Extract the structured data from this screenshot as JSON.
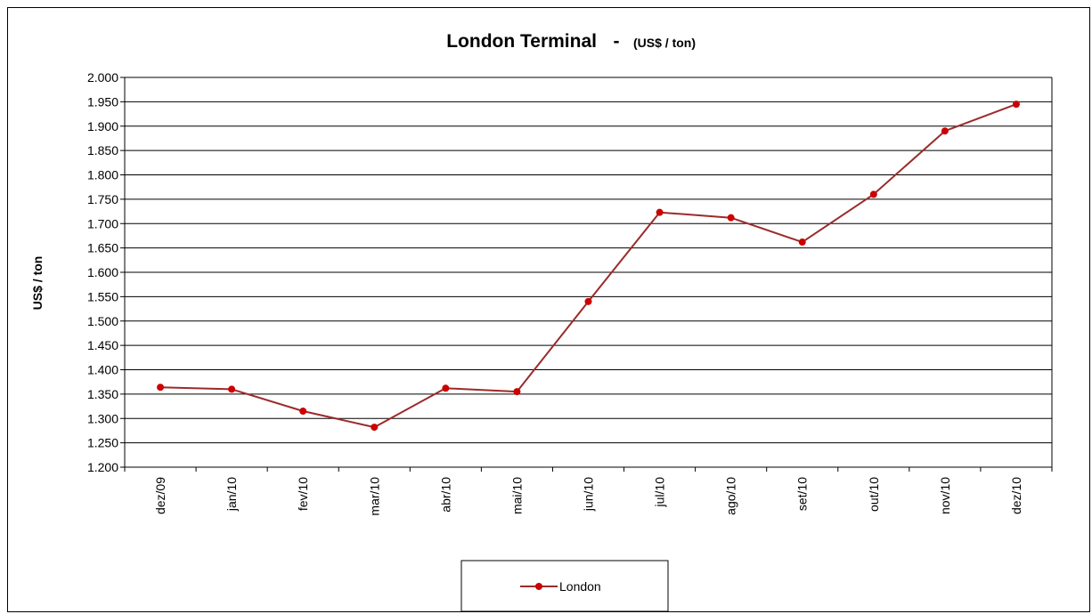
{
  "chart_data": {
    "type": "line",
    "title": "London Terminal",
    "title_separator": "-",
    "subtitle": "(US$ / ton)",
    "xlabel": "",
    "ylabel": "US$ / ton",
    "ylim": [
      1200,
      2000
    ],
    "ytick_step": 50,
    "ytick_labels": [
      "1.200",
      "1.250",
      "1.300",
      "1.350",
      "1.400",
      "1.450",
      "1.500",
      "1.550",
      "1.600",
      "1.650",
      "1.700",
      "1.750",
      "1.800",
      "1.850",
      "1.900",
      "1.950",
      "2.000"
    ],
    "categories": [
      "dez/09",
      "jan/10",
      "fev/10",
      "mar/10",
      "abr/10",
      "mai/10",
      "jun/10",
      "jul/10",
      "ago/10",
      "set/10",
      "out/10",
      "nov/10",
      "dez/10"
    ],
    "series": [
      {
        "name": "London",
        "color": "#9b2b2b",
        "marker_color": "#cc0000",
        "values": [
          1364,
          1360,
          1315,
          1282,
          1362,
          1355,
          1540,
          1723,
          1712,
          1662,
          1760,
          1890,
          1945
        ]
      }
    ],
    "grid": true,
    "legend_position": "bottom"
  }
}
